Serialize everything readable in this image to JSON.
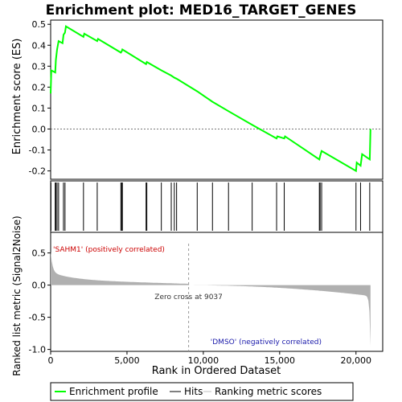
{
  "chart_data": {
    "type": "line",
    "title": "Enrichment plot: MED16_TARGET_GENES",
    "es_panel": {
      "ylabel": "Enrichment score (ES)",
      "ylim": [
        -0.24,
        0.52
      ],
      "yticks": [
        -0.2,
        -0.1,
        0.0,
        0.1,
        0.2,
        0.3,
        0.4,
        0.5
      ],
      "ytick_labels": [
        "-0.2",
        "-0.1",
        "0.0",
        "0.1",
        "0.2",
        "0.3",
        "0.4",
        "0.5"
      ],
      "series": [
        {
          "name": "Enrichment profile",
          "color": "#00ff00",
          "points": [
            [
              0,
              0.17
            ],
            [
              40,
              0.28
            ],
            [
              300,
              0.27
            ],
            [
              340,
              0.33
            ],
            [
              420,
              0.38
            ],
            [
              520,
              0.42
            ],
            [
              780,
              0.41
            ],
            [
              840,
              0.45
            ],
            [
              940,
              0.46
            ],
            [
              1000,
              0.49
            ],
            [
              2150,
              0.44
            ],
            [
              2200,
              0.455
            ],
            [
              3050,
              0.42
            ],
            [
              3100,
              0.43
            ],
            [
              4600,
              0.365
            ],
            [
              4650,
              0.37
            ],
            [
              4700,
              0.38
            ],
            [
              6250,
              0.31
            ],
            [
              6300,
              0.32
            ],
            [
              7250,
              0.28
            ],
            [
              7900,
              0.255
            ],
            [
              8100,
              0.245
            ],
            [
              8250,
              0.24
            ],
            [
              9600,
              0.18
            ],
            [
              10600,
              0.13
            ],
            [
              11650,
              0.085
            ],
            [
              13200,
              0.02
            ],
            [
              14800,
              -0.045
            ],
            [
              14850,
              -0.035
            ],
            [
              15300,
              -0.045
            ],
            [
              15350,
              -0.035
            ],
            [
              17600,
              -0.145
            ],
            [
              17650,
              -0.13
            ],
            [
              17750,
              -0.105
            ],
            [
              20000,
              -0.2
            ],
            [
              20050,
              -0.16
            ],
            [
              20300,
              -0.175
            ],
            [
              20400,
              -0.12
            ],
            [
              20900,
              -0.145
            ],
            [
              20950,
              0.0
            ]
          ]
        }
      ]
    },
    "hits": [
      20,
      300,
      340,
      420,
      520,
      840,
      940,
      2150,
      3050,
      4600,
      4650,
      4700,
      6250,
      6300,
      7250,
      7900,
      8100,
      8250,
      9600,
      10600,
      11650,
      13200,
      14800,
      15300,
      17600,
      17650,
      17750,
      20000,
      20300,
      20900
    ],
    "ranked_panel": {
      "ylabel": "Ranked list metric (Signal2Noise)",
      "xlabel": "Rank in Ordered Dataset",
      "xlim": [
        0,
        21750
      ],
      "xticks": [
        0,
        5000,
        10000,
        15000,
        20000
      ],
      "xtick_labels": [
        "0",
        "5,000",
        "10,000",
        "15,000",
        "20,000"
      ],
      "ylim": [
        -1.03,
        0.82
      ],
      "yticks": [
        -1.0,
        -0.5,
        0.0,
        0.5
      ],
      "ytick_labels": [
        "-1.0",
        "-0.5",
        "0.0",
        "0.5"
      ],
      "total": 20950,
      "zero_cross": 9037,
      "zero_cross_label": "Zero cross at 9037",
      "positive_label": "'SAHM1' (positively correlated)",
      "negative_label": "'DMSO' (negatively correlated)",
      "fill_color": "#b0b0b0"
    },
    "legend": {
      "placement": "bottom",
      "entries": [
        {
          "label": "Enrichment profile",
          "color": "#00ff00"
        },
        {
          "label": "Hits",
          "color": "#000000"
        },
        {
          "label": "Ranking metric scores",
          "color": "#c0c0c0"
        }
      ]
    }
  }
}
